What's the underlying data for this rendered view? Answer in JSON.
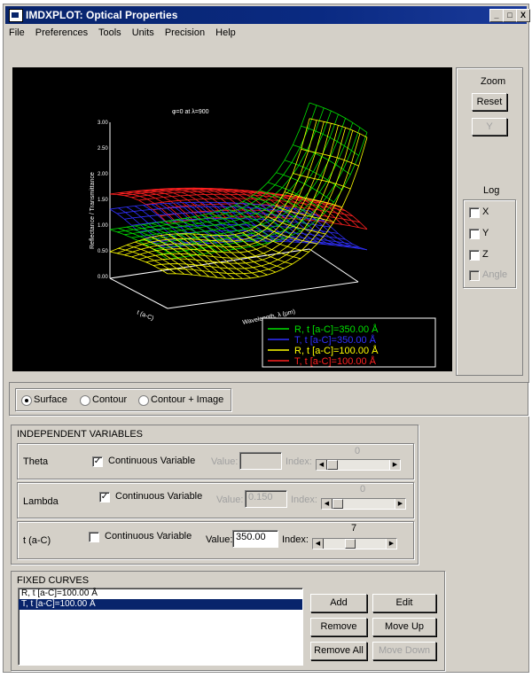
{
  "window": {
    "title": "IMDXPLOT: Optical Properties",
    "controls": [
      "_",
      "□",
      "X"
    ]
  },
  "menu": [
    "File",
    "Preferences",
    "Tools",
    "Units",
    "Precision",
    "Help"
  ],
  "plot": {
    "annotation": "φ=0 at λ=900",
    "z_axis_label": "Reflectance / Transmittance",
    "x_axis_label": "Wavelength, λ (μm)",
    "y_axis_label": "t (a-C)",
    "z_tick_labels": [
      "0.00",
      "0.50",
      "1.00",
      "1.50",
      "2.00",
      "2.50",
      "3.00"
    ],
    "legend": [
      {
        "label": "R, t [a-C]=350.00 Å",
        "color": "#00e000"
      },
      {
        "label": "T, t [a-C]=350.00 Å",
        "color": "#3030ff"
      },
      {
        "label": "R, t [a-C]=100.00 Å",
        "color": "#ffff00"
      },
      {
        "label": "T, t [a-C]=100.00 Å",
        "color": "#ff2020"
      }
    ]
  },
  "zoom": {
    "title": "Zoom",
    "reset_label": "Reset",
    "y_label": "Y"
  },
  "log": {
    "title": "Log",
    "options": [
      {
        "label": "X",
        "checked": false,
        "enabled": true
      },
      {
        "label": "Y",
        "checked": false,
        "enabled": true
      },
      {
        "label": "Z",
        "checked": false,
        "enabled": true
      },
      {
        "label": "Angle",
        "checked": false,
        "enabled": false
      }
    ]
  },
  "display_modes": [
    {
      "label": "Surface",
      "selected": true
    },
    {
      "label": "Contour",
      "selected": false
    },
    {
      "label": "Contour + Image",
      "selected": false
    }
  ],
  "independent_variables": {
    "title": "INDEPENDENT VARIABLES",
    "rows": [
      {
        "name": "Theta",
        "continuous_label": "Continuous Variable",
        "continuous": true,
        "value_label": "Value:",
        "value": "",
        "index_label": "Index:",
        "index": "0"
      },
      {
        "name": "Lambda",
        "continuous_label": "Continuous Variable",
        "continuous": true,
        "value_label": "Value:",
        "value": "0.150",
        "index_label": "Index:",
        "index": "0"
      },
      {
        "name": "t (a-C)",
        "continuous_label": "Continuous Variable",
        "continuous": false,
        "value_label": "Value:",
        "value": "350.00",
        "index_label": "Index:",
        "index": "7"
      }
    ]
  },
  "fixed_curves": {
    "title": "FIXED CURVES",
    "items": [
      {
        "label": "R, t [a-C]=100.00 Å",
        "selected": false
      },
      {
        "label": "T, t [a-C]=100.00 Å",
        "selected": true
      }
    ],
    "buttons": {
      "add": "Add",
      "edit": "Edit",
      "remove": "Remove",
      "move_up": "Move Up",
      "remove_all": "Remove All",
      "move_down": "Move Down"
    }
  }
}
